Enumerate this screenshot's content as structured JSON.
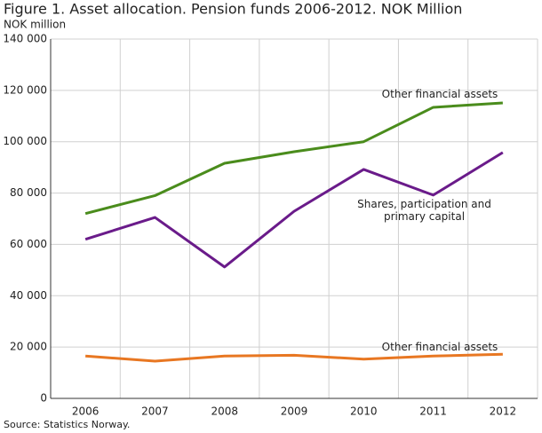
{
  "chart_data": {
    "type": "line",
    "title": "Figure 1. Asset allocation. Pension funds 2006-2012. NOK Million",
    "y_label": "NOK million",
    "source": "Source: Statistics Norway.",
    "categories": [
      "2006",
      "2007",
      "2008",
      "2009",
      "2010",
      "2011",
      "2012"
    ],
    "series": [
      {
        "name": "Other financial assets",
        "color": "#4a8c1c",
        "values": [
          72000,
          79000,
          91600,
          96100,
          100000,
          113400,
          115100
        ]
      },
      {
        "name": "Shares, participation and primary capital",
        "color": "#6a1b8a",
        "values": [
          62000,
          70500,
          51200,
          72900,
          89200,
          79200,
          95800
        ]
      },
      {
        "name": "Other financial assets",
        "color": "#e87722",
        "values": [
          16500,
          14500,
          16500,
          16800,
          15300,
          16500,
          17200
        ]
      }
    ],
    "ylim": [
      0,
      140000
    ],
    "yticks": [
      0,
      {
        "value": 20000,
        "label": "20 000"
      },
      {
        "value": 40000,
        "label": "40 000"
      },
      {
        "value": 60000,
        "label": "60 000"
      },
      {
        "value": 80000,
        "label": "80 000"
      },
      {
        "value": 100000,
        "label": "100 000"
      },
      {
        "value": 120000,
        "label": "120 000"
      },
      {
        "value": 140000,
        "label": "140 000"
      }
    ],
    "grid": true
  }
}
